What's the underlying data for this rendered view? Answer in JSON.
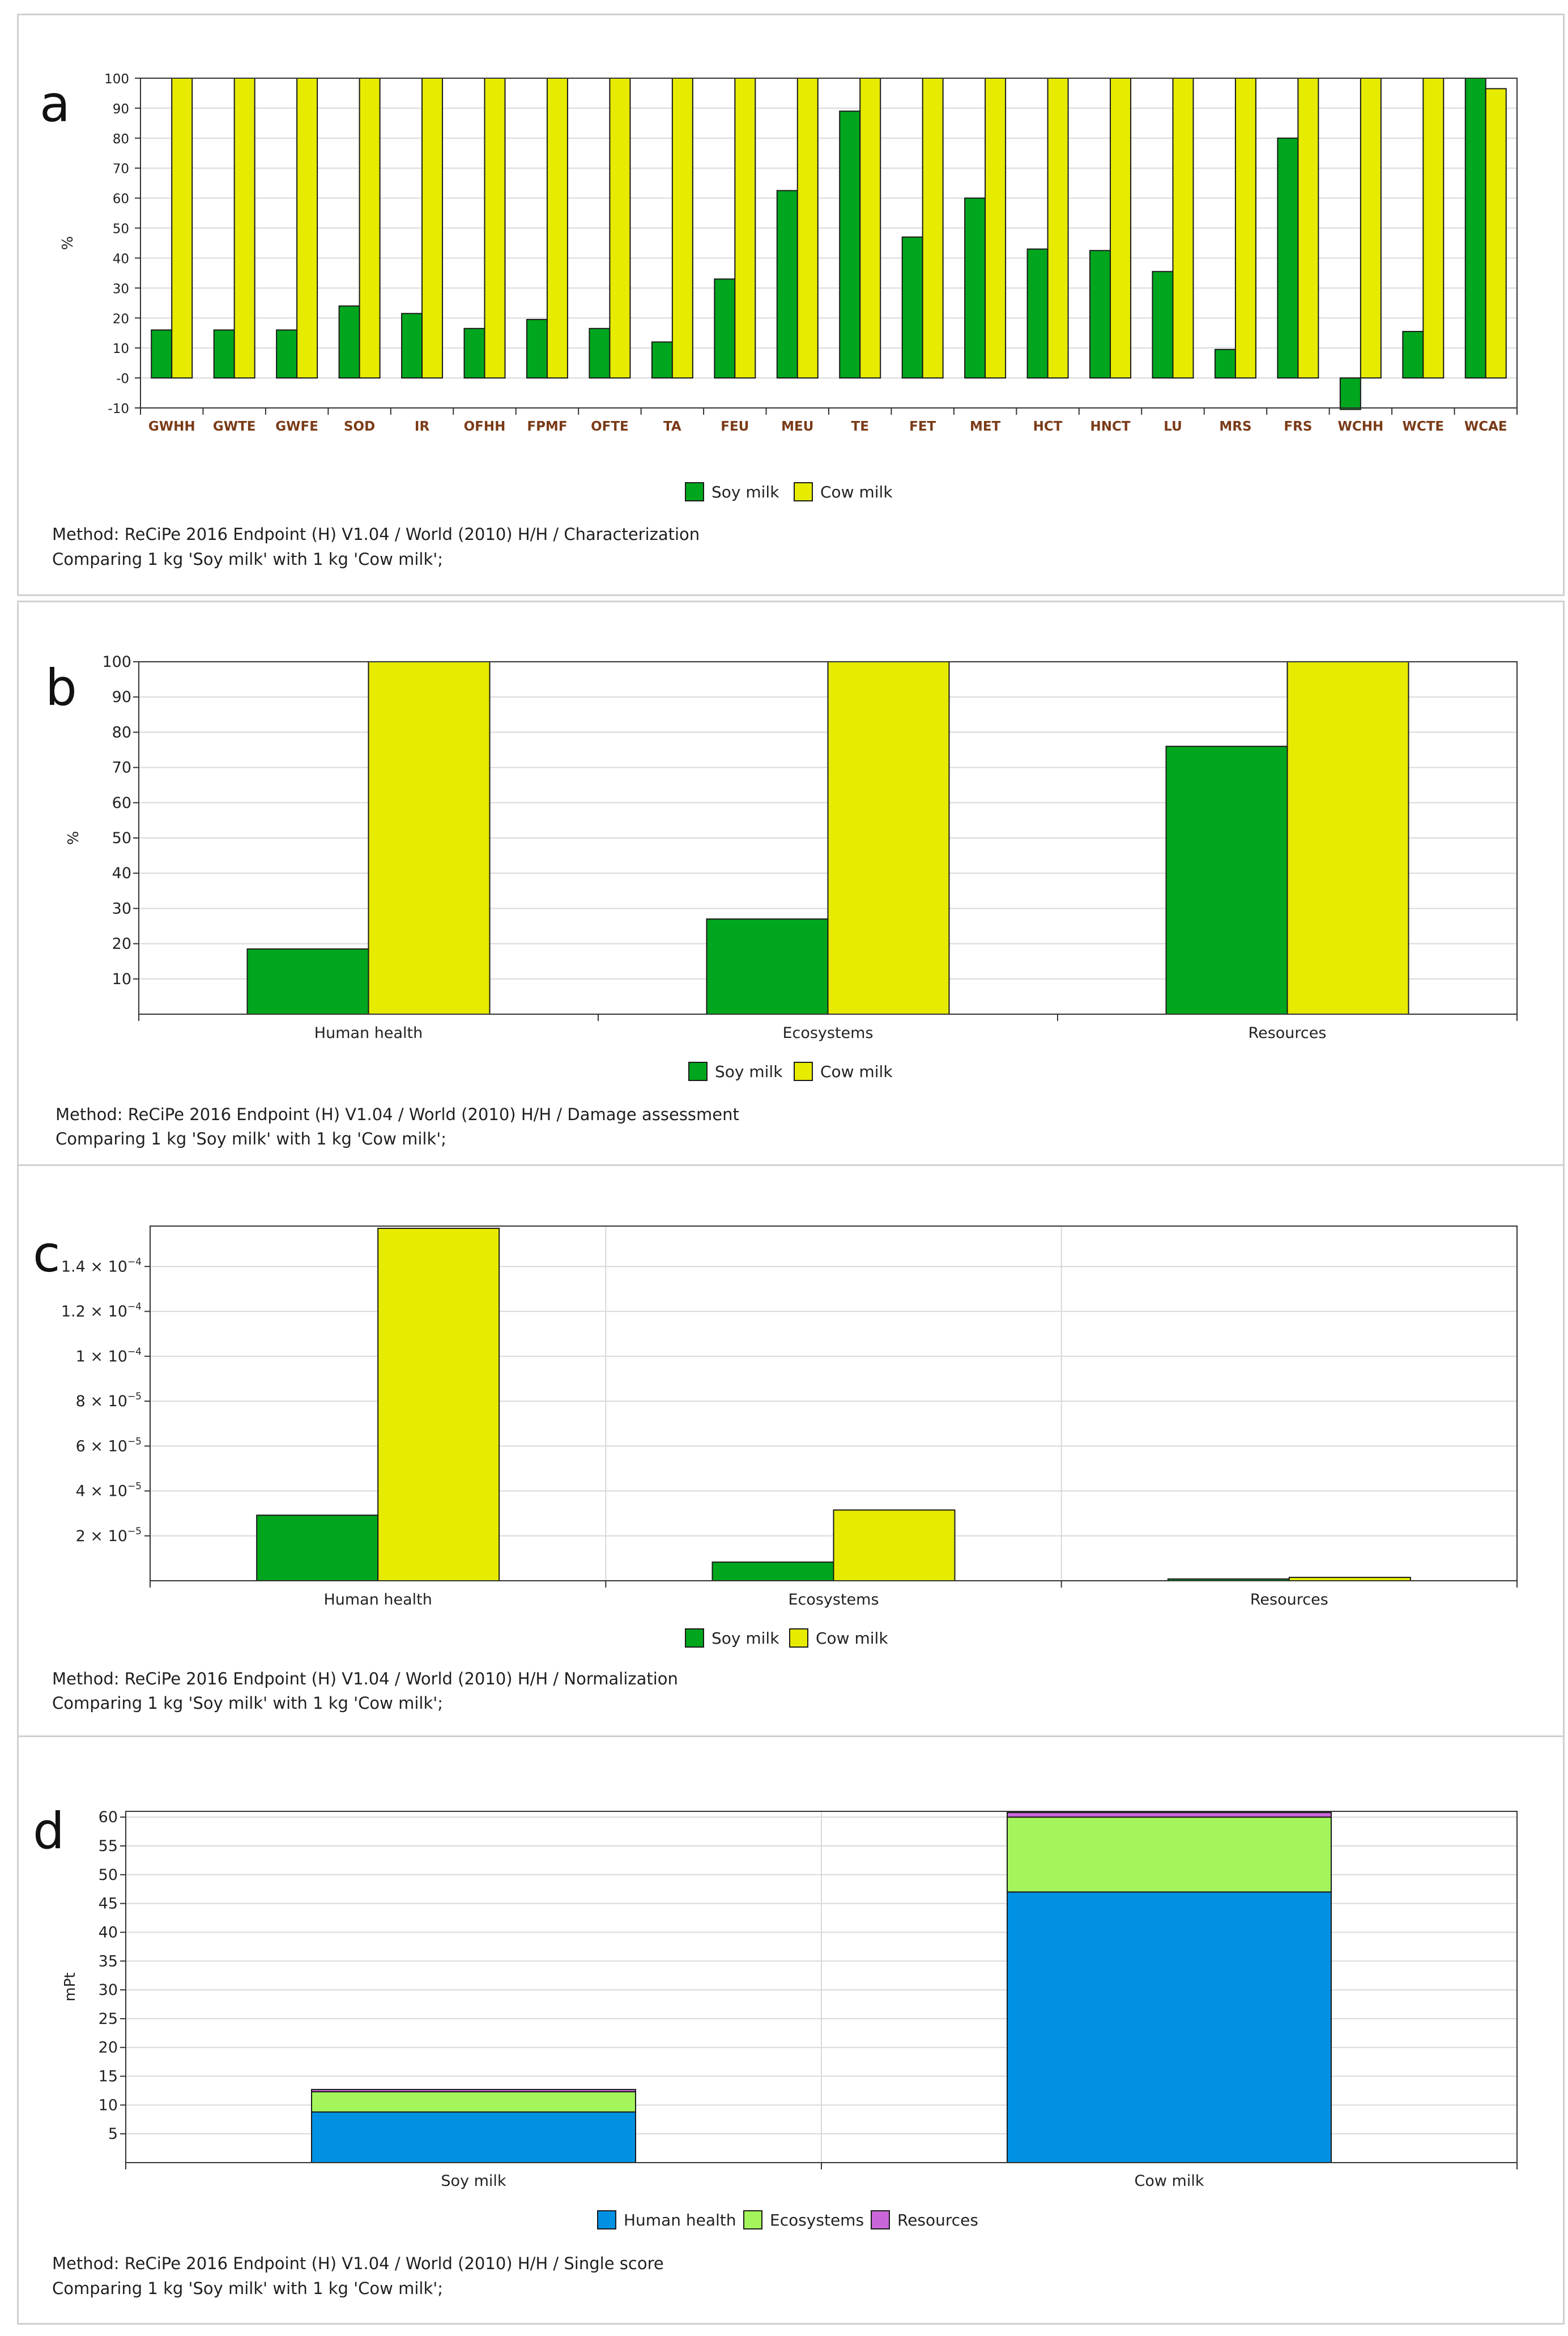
{
  "colors": {
    "soy": "#00a61d",
    "cow": "#e6eb00",
    "human_health": "#0091e3",
    "ecosystems": "#a4f55b",
    "resources": "#c866d9",
    "grid": "#d9d9d9",
    "tick_a": "#7a3b18"
  },
  "panels": [
    {
      "letter": "a",
      "method": "Method: ReCiPe 2016 Endpoint (H) V1.04 / World (2010) H/H / Characterization",
      "comparing": "Comparing 1 kg 'Soy milk' with 1 kg 'Cow milk';"
    },
    {
      "letter": "b",
      "method": "Method: ReCiPe 2016 Endpoint (H) V1.04 / World (2010) H/H / Damage assessment",
      "comparing": "Comparing 1 kg 'Soy milk' with 1 kg 'Cow milk';"
    },
    {
      "letter": "c",
      "method": "Method: ReCiPe 2016 Endpoint (H) V1.04 / World (2010) H/H / Normalization",
      "comparing": "Comparing 1 kg 'Soy milk' with 1 kg 'Cow milk';"
    },
    {
      "letter": "d",
      "method": "Method: ReCiPe 2016 Endpoint (H) V1.04 / World (2010) H/H / Single score",
      "comparing": "Comparing 1 kg 'Soy milk' with 1 kg 'Cow milk';"
    }
  ],
  "chart_data": [
    {
      "type": "bar",
      "title": "Characterization",
      "ylabel": "%",
      "ylim": [
        -10,
        100
      ],
      "yticks": [
        -10,
        0,
        10,
        20,
        30,
        40,
        50,
        60,
        70,
        80,
        90,
        100
      ],
      "ytick_labels": [
        "-10",
        "-0",
        "10",
        "20",
        "30",
        "40",
        "50",
        "60",
        "70",
        "80",
        "90",
        "100"
      ],
      "grid": true,
      "legend": "bottom-center",
      "categories": [
        "GWHH",
        "GWTE",
        "GWFE",
        "SOD",
        "IR",
        "OFHH",
        "FPMF",
        "OFTE",
        "TA",
        "FEU",
        "MEU",
        "TE",
        "FET",
        "MET",
        "HCT",
        "HNCT",
        "LU",
        "MRS",
        "FRS",
        "WCHH",
        "WCTE",
        "WCAE"
      ],
      "series": [
        {
          "name": "Soy milk",
          "values": [
            16,
            16,
            16,
            24,
            21.5,
            16.5,
            19.5,
            16.5,
            12,
            33,
            62.5,
            89,
            47,
            60,
            43,
            42.5,
            35.5,
            9.5,
            80,
            -10.5,
            15.5,
            100
          ]
        },
        {
          "name": "Cow milk",
          "values": [
            100,
            100,
            100,
            100,
            100,
            100,
            100,
            100,
            100,
            100,
            100,
            100,
            100,
            100,
            100,
            100,
            100,
            100,
            100,
            100,
            100,
            96.5
          ]
        }
      ]
    },
    {
      "type": "bar",
      "title": "Damage assessment",
      "ylabel": "%",
      "ylim": [
        0,
        100
      ],
      "yticks": [
        10,
        20,
        30,
        40,
        50,
        60,
        70,
        80,
        90,
        100
      ],
      "ytick_labels": [
        "10",
        "20",
        "30",
        "40",
        "50",
        "60",
        "70",
        "80",
        "90",
        "100"
      ],
      "grid": true,
      "legend": "bottom-center",
      "categories": [
        "Human health",
        "Ecosystems",
        "Resources"
      ],
      "series": [
        {
          "name": "Soy milk",
          "values": [
            18.5,
            27,
            76
          ]
        },
        {
          "name": "Cow milk",
          "values": [
            100,
            100,
            100
          ]
        }
      ]
    },
    {
      "type": "bar",
      "title": "Normalization",
      "ylabel": "",
      "ylim": [
        0,
        0.000158
      ],
      "yticks": [
        2e-05,
        4e-05,
        6e-05,
        8e-05,
        0.0001,
        0.00012,
        0.00014
      ],
      "ytick_mantissa": [
        "2",
        "4",
        "6",
        "8",
        "1",
        "1.2",
        "1.4"
      ],
      "ytick_exponent": [
        "−5",
        "−5",
        "−5",
        "−5",
        "−4",
        "−4",
        "−4"
      ],
      "ytick_times": " × 10",
      "grid": true,
      "legend": "bottom-center",
      "categories": [
        "Human health",
        "Ecosystems",
        "Resources"
      ],
      "series": [
        {
          "name": "Soy milk",
          "values": [
            2.92e-05,
            8.3e-06,
            8e-07
          ]
        },
        {
          "name": "Cow milk",
          "values": [
            0.000157,
            3.15e-05,
            1.5e-06
          ]
        }
      ]
    },
    {
      "type": "bar",
      "stacked": true,
      "title": "Single score",
      "ylabel": "mPt",
      "ylim": [
        0,
        61
      ],
      "yticks": [
        5,
        10,
        15,
        20,
        25,
        30,
        35,
        40,
        45,
        50,
        55,
        60
      ],
      "ytick_labels": [
        "5",
        "10",
        "15",
        "20",
        "25",
        "30",
        "35",
        "40",
        "45",
        "50",
        "55",
        "60"
      ],
      "grid": true,
      "legend": "bottom-center",
      "categories": [
        "Soy milk",
        "Cow milk"
      ],
      "series": [
        {
          "name": "Human health",
          "values": [
            8.8,
            47
          ]
        },
        {
          "name": "Ecosystems",
          "values": [
            3.5,
            13
          ]
        },
        {
          "name": "Resources",
          "values": [
            0.4,
            0.8
          ]
        }
      ]
    }
  ]
}
